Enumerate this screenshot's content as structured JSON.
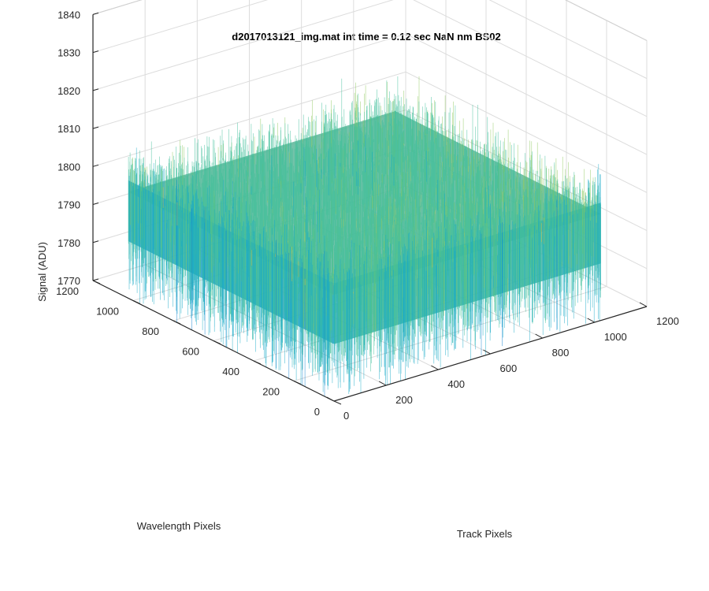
{
  "chart_data": {
    "type": "surface3d",
    "title": "d2017013121_img.mat int time = 0.12 sec  NaN nm BS02",
    "xlabel": "Track Pixels",
    "ylabel": "Wavelength Pixels",
    "zlabel": "Signal (ADU)",
    "xlim": [
      0,
      1200
    ],
    "ylim": [
      0,
      1200
    ],
    "zlim": [
      1770,
      1840
    ],
    "x_ticks": [
      "0",
      "200",
      "400",
      "600",
      "800",
      "1000",
      "1200"
    ],
    "y_ticks": [
      "0",
      "200",
      "400",
      "600",
      "800",
      "1000",
      "1200"
    ],
    "z_ticks": [
      "1770",
      "1780",
      "1790",
      "1800",
      "1810",
      "1820",
      "1830",
      "1840"
    ],
    "surface_extent": {
      "x": [
        0,
        1024
      ],
      "y": [
        0,
        1024
      ]
    },
    "signal_baseline": 1797,
    "signal_noise_range": [
      1772,
      1834
    ],
    "colormap": [
      "#0d7fd0",
      "#17a9c7",
      "#3fbf9a",
      "#8cc85c",
      "#d6bd3c",
      "#f5d73a"
    ],
    "grid": true,
    "view": "3d perspective, azimuth -37.5, elevation 30"
  }
}
